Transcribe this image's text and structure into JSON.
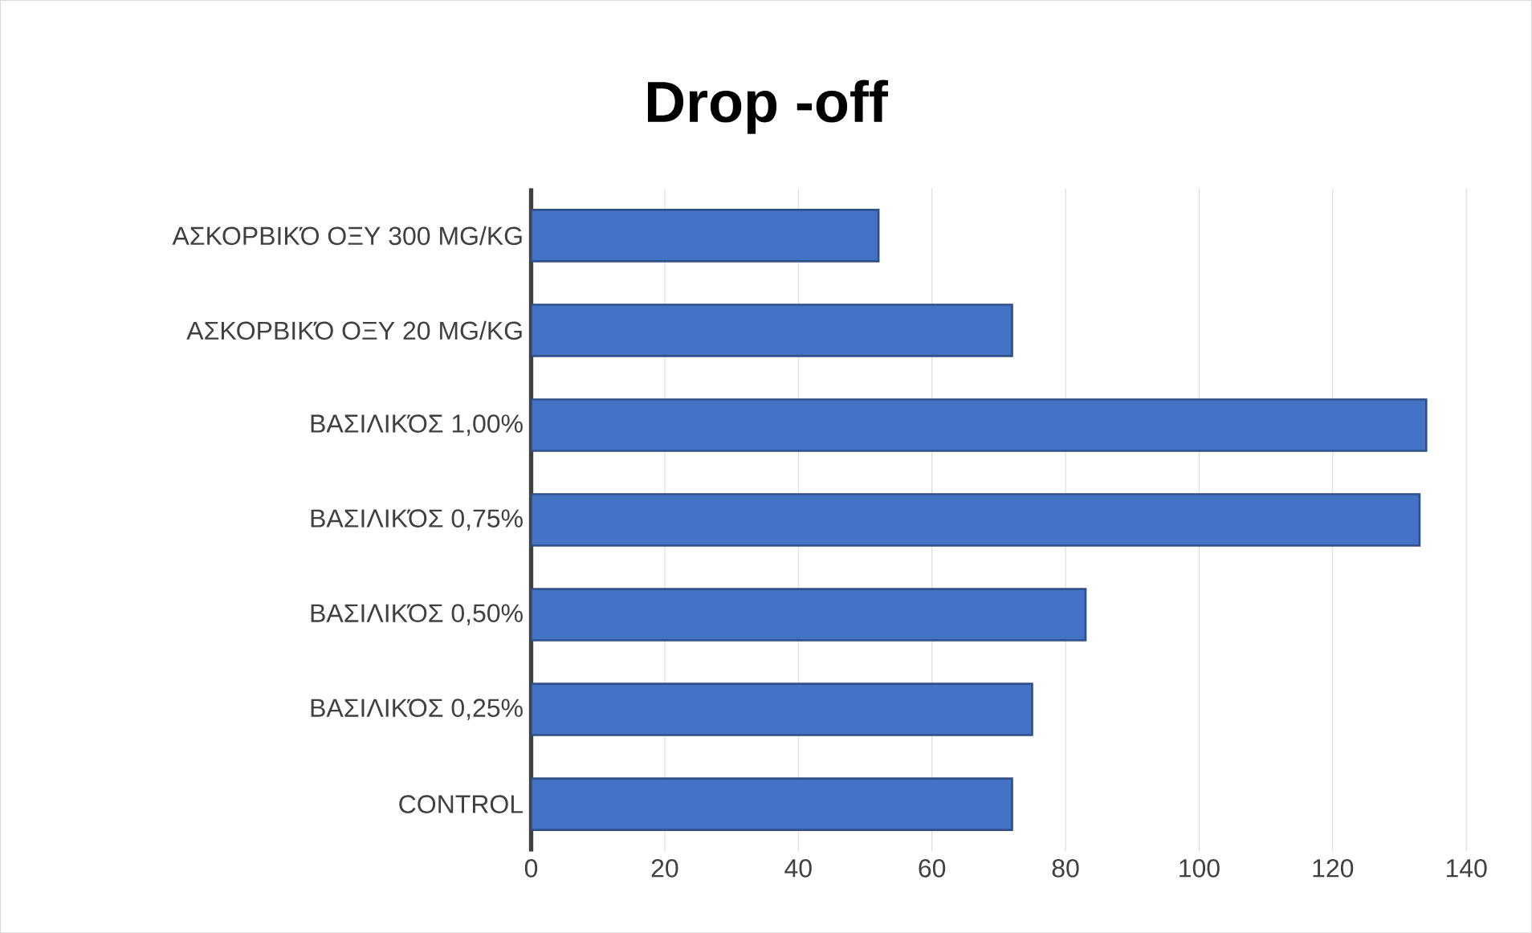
{
  "chart_data": {
    "type": "bar",
    "orientation": "horizontal",
    "title": "Drop -off",
    "categories": [
      "ΑΣΚΟΡΒΙΚΌ ΟΞΥ 300 MG/KG",
      "ΑΣΚΟΡΒΙΚΌ ΟΞΥ 20 MG/KG",
      "ΒΑΣΙΛΙΚΌΣ 1,00%",
      "ΒΑΣΙΛΙΚΌΣ 0,75%",
      "ΒΑΣΙΛΙΚΌΣ 0,50%",
      "ΒΑΣΙΛΙΚΌΣ 0,25%",
      "CONTROL"
    ],
    "values": [
      52,
      72,
      134,
      133,
      83,
      75,
      72
    ],
    "color": "#4472c4",
    "xlim": [
      0,
      140
    ],
    "xticks": [
      0,
      20,
      40,
      60,
      80,
      100,
      120,
      140
    ],
    "grid": "x"
  }
}
